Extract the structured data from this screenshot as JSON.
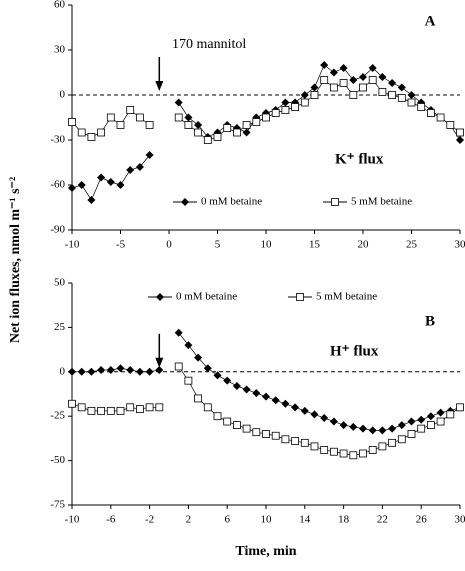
{
  "chart_data": [
    {
      "type": "line",
      "ylabel": "Net ion fluxes, nmol m⁻¹ s⁻²",
      "annotations": [
        "170 mannitol",
        "A",
        "K⁺ flux"
      ],
      "x": [
        -10,
        -9,
        -8,
        -7,
        -6,
        -5,
        -4,
        -3,
        -2,
        -1,
        0,
        1,
        2,
        3,
        4,
        5,
        6,
        7,
        8,
        9,
        10,
        11,
        12,
        13,
        14,
        15,
        16,
        17,
        18,
        19,
        20,
        21,
        22,
        23,
        24,
        25,
        26,
        27,
        28,
        29,
        30
      ],
      "series": [
        {
          "name": "0 mM betaine",
          "color": "#000000",
          "marker": "diamond",
          "values": [
            -62,
            -60,
            -70,
            -55,
            -58,
            -60,
            -50,
            -48,
            -40,
            null,
            null,
            -5,
            -15,
            -20,
            -28,
            -25,
            -20,
            -22,
            -25,
            -15,
            -12,
            -10,
            -5,
            -5,
            0,
            5,
            20,
            15,
            18,
            10,
            12,
            18,
            12,
            8,
            5,
            0,
            -5,
            -10,
            -15,
            -20,
            -30
          ]
        },
        {
          "name": "5 mM betaine",
          "color": "#000000",
          "marker": "square",
          "values": [
            -18,
            -25,
            -28,
            -25,
            -15,
            -20,
            -10,
            -15,
            -20,
            null,
            null,
            -15,
            -20,
            -25,
            -30,
            -28,
            -22,
            -25,
            -20,
            -18,
            -15,
            -12,
            -10,
            -8,
            -5,
            0,
            10,
            5,
            8,
            0,
            5,
            10,
            2,
            0,
            -2,
            -5,
            -8,
            -12,
            -15,
            -20,
            -25
          ]
        }
      ],
      "xlim": [
        -10,
        30
      ],
      "xticks": [
        -10,
        -5,
        0,
        5,
        10,
        15,
        20,
        25,
        30
      ],
      "ylim": [
        -90,
        60
      ],
      "yticks": [
        -90,
        -60,
        -30,
        0,
        30,
        60
      ]
    },
    {
      "type": "line",
      "xlabel": "Time, min",
      "annotations": [
        "B",
        "H⁺ flux"
      ],
      "x": [
        -10,
        -9,
        -8,
        -7,
        -6,
        -5,
        -4,
        -3,
        -2,
        -1,
        0,
        1,
        2,
        3,
        4,
        5,
        6,
        7,
        8,
        9,
        10,
        11,
        12,
        13,
        14,
        15,
        16,
        17,
        18,
        19,
        20,
        21,
        22,
        23,
        24,
        25,
        26,
        27,
        28,
        29,
        30
      ],
      "series": [
        {
          "name": "0 mM betaine",
          "color": "#000000",
          "marker": "diamond",
          "values": [
            0,
            0,
            0,
            1,
            1,
            2,
            1,
            0,
            0,
            1,
            null,
            22,
            15,
            8,
            2,
            -2,
            -5,
            -8,
            -10,
            -12,
            -14,
            -16,
            -18,
            -20,
            -22,
            -24,
            -26,
            -28,
            -30,
            -31,
            -32,
            -33,
            -33,
            -32,
            -30,
            -28,
            -27,
            -25,
            -23,
            -22,
            -20
          ]
        },
        {
          "name": "5 mM betaine",
          "color": "#000000",
          "marker": "square",
          "values": [
            -18,
            -20,
            -22,
            -22,
            -22,
            -22,
            -20,
            -21,
            -20,
            -20,
            null,
            3,
            -5,
            -15,
            -20,
            -25,
            -28,
            -30,
            -32,
            -34,
            -35,
            -36,
            -38,
            -39,
            -40,
            -42,
            -44,
            -45,
            -46,
            -47,
            -46,
            -44,
            -42,
            -40,
            -38,
            -35,
            -32,
            -30,
            -28,
            -24,
            -20
          ]
        }
      ],
      "xlim": [
        -10,
        30
      ],
      "xticks": [
        -10,
        -6,
        -2,
        2,
        6,
        10,
        14,
        18,
        22,
        26,
        30
      ],
      "ylim": [
        -75,
        50
      ],
      "yticks": [
        -75,
        -50,
        -25,
        0,
        25,
        50
      ]
    }
  ]
}
